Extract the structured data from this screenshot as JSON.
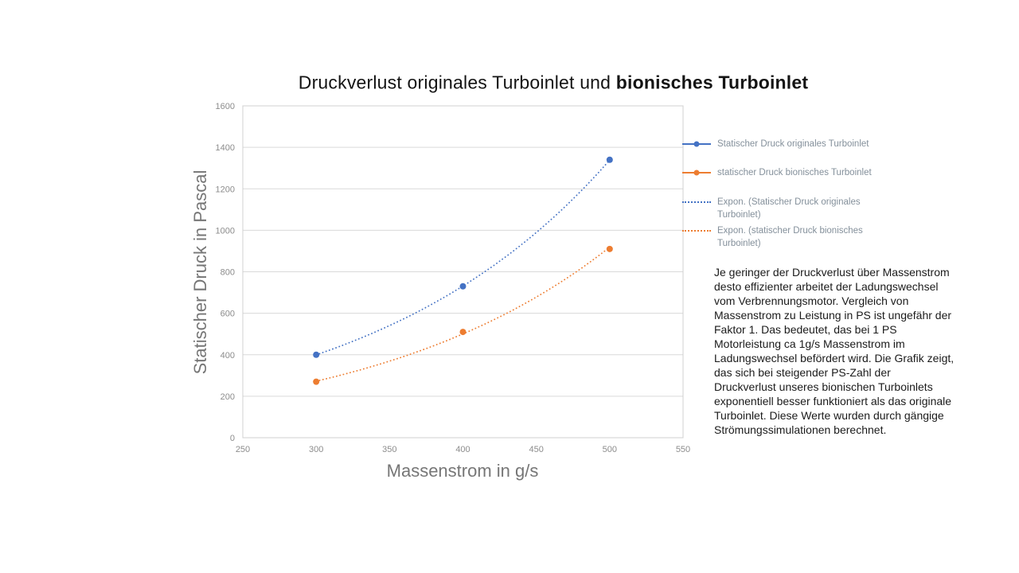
{
  "slide": {
    "title": {
      "regular": "Druckverlust originales Turboinlet und ",
      "bold": "bionisches Turboinlet"
    },
    "paragraph": "Je geringer der Druckverlust über Massenstrom desto effizienter arbeitet der Ladungswechsel vom Verbrennungsmotor. Vergleich von Massenstrom zu Leistung in PS ist ungefähr der Faktor 1. Das bedeutet, das bei 1 PS Motorleistung ca 1g/s Massenstrom im Ladungswechsel befördert wird. Die Grafik zeigt, das sich bei steigender PS-Zahl der Druckverlust unseres bionischen Turboinlets exponentiell besser funktioniert als das originale Turboinlet. Diese Werte wurden durch gängige Strömungssimulationen berechnet."
  },
  "chart_data": {
    "type": "scatter",
    "title": "Druckverlust originales Turboinlet und bionisches Turboinlet",
    "xlabel": "Massenstrom in g/s",
    "ylabel": "Statischer Druck in Pascal",
    "x": [
      300,
      400,
      500
    ],
    "series": [
      {
        "name": "Statischer Druck originales Turboinlet",
        "values": [
          400,
          730,
          1340
        ],
        "color": "#4472C4",
        "trendline": "exponential"
      },
      {
        "name": "statischer Druck bionisches Turboinlet",
        "values": [
          270,
          510,
          910
        ],
        "color": "#ED7D31",
        "trendline": "exponential"
      }
    ],
    "legend": [
      {
        "label": "Statischer Druck originales Turboinlet",
        "color": "#4472C4",
        "style": "line-marker"
      },
      {
        "label": "statischer Druck bionisches Turboinlet",
        "color": "#ED7D31",
        "style": "line-marker"
      },
      {
        "label": "Expon. (Statischer Druck originales Turboinlet)",
        "color": "#4472C4",
        "style": "dotted"
      },
      {
        "label": "Expon. (statischer Druck bionisches Turboinlet)",
        "color": "#ED7D31",
        "style": "dotted"
      }
    ],
    "xlim": [
      250,
      550
    ],
    "ylim": [
      0,
      1600
    ],
    "x_ticks": [
      "250",
      "300",
      "350",
      "400",
      "450",
      "500",
      "550"
    ],
    "y_ticks": [
      "0",
      "200",
      "400",
      "600",
      "800",
      "1000",
      "1200",
      "1400",
      "1600"
    ],
    "grid": "horizontal",
    "legend_position": "right",
    "colors": {
      "gridline": "#D9D9D9",
      "plot_border": "#D0D0D0",
      "tick_label": "#8C8C8C",
      "axis_title": "#767676",
      "legend_text": "#84909B"
    }
  }
}
